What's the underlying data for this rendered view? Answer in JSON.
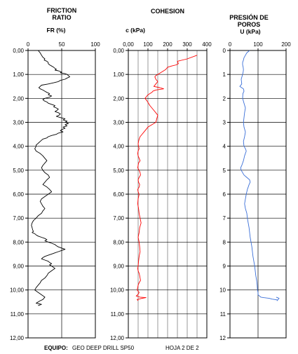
{
  "chart_data": [
    {
      "type": "line",
      "title": [
        "FRICTION",
        "RATIO"
      ],
      "xlabel": "FR (%)",
      "x_ticks": [
        0,
        50,
        100
      ],
      "xlim": [
        0,
        100
      ],
      "ylim": [
        0,
        12
      ],
      "y_ticks": [
        "0,00",
        "1,00",
        "2,00",
        "3,00",
        "4,00",
        "5,00",
        "6,00",
        "7,00",
        "8,00",
        "9,00",
        "10,00",
        "11,00",
        "12,00"
      ],
      "color": "#000000",
      "series": [
        {
          "x": [
            15,
            18,
            20,
            22,
            25,
            24,
            28,
            30,
            30,
            32,
            35,
            38,
            40,
            42,
            40,
            45,
            50,
            48,
            55,
            58,
            60,
            62,
            58,
            55,
            48,
            45,
            38,
            30,
            20,
            18,
            16,
            18,
            22,
            25,
            28,
            32,
            30,
            35,
            32,
            25,
            22,
            24,
            28,
            30,
            35,
            40,
            38,
            42,
            45,
            43,
            40,
            45,
            48,
            46,
            42,
            48,
            55,
            52,
            58,
            55,
            60,
            55,
            58,
            52,
            55,
            50,
            48,
            52,
            45,
            42,
            35,
            30,
            28,
            22,
            20,
            18,
            16,
            14,
            12,
            12,
            10,
            12,
            18,
            22,
            25,
            28,
            25,
            22,
            20,
            22,
            25,
            30,
            32,
            28,
            25,
            22,
            28,
            32,
            35,
            30,
            25,
            20,
            18,
            20,
            22,
            25,
            22,
            20,
            15,
            12,
            8,
            6,
            5,
            6,
            7,
            8,
            6,
            10,
            12,
            15,
            20,
            25,
            28,
            25,
            30,
            35,
            40,
            42,
            45,
            50,
            55,
            50,
            45,
            40,
            35,
            30,
            25,
            22,
            20,
            25,
            30,
            32,
            35,
            32,
            35,
            40,
            35,
            30,
            28,
            25,
            20,
            18,
            15,
            12,
            10,
            15,
            20,
            25,
            22,
            18,
            15,
            12,
            20,
            15
          ],
          "y": [
            0.0,
            0.1,
            0.2,
            0.28,
            0.35,
            0.4,
            0.45,
            0.5,
            0.55,
            0.6,
            0.65,
            0.7,
            0.75,
            0.78,
            0.82,
            0.85,
            0.9,
            0.93,
            0.97,
            1.0,
            1.05,
            1.1,
            1.15,
            1.2,
            1.25,
            1.3,
            1.35,
            1.4,
            1.45,
            1.5,
            1.55,
            1.6,
            1.65,
            1.7,
            1.75,
            1.8,
            1.85,
            1.9,
            1.95,
            2.0,
            2.05,
            2.1,
            2.15,
            2.2,
            2.25,
            2.3,
            2.35,
            2.4,
            2.45,
            2.5,
            2.55,
            2.6,
            2.65,
            2.7,
            2.75,
            2.8,
            2.85,
            2.9,
            2.95,
            3.0,
            3.05,
            3.1,
            3.15,
            3.2,
            3.25,
            3.3,
            3.35,
            3.4,
            3.45,
            3.5,
            3.55,
            3.6,
            3.65,
            3.7,
            3.75,
            3.8,
            3.85,
            3.9,
            3.95,
            4.0,
            4.1,
            4.2,
            4.3,
            4.4,
            4.5,
            4.6,
            4.7,
            4.8,
            4.9,
            5.0,
            5.1,
            5.2,
            5.3,
            5.4,
            5.5,
            5.6,
            5.7,
            5.8,
            5.9,
            6.0,
            6.1,
            6.2,
            6.3,
            6.4,
            6.5,
            6.6,
            6.7,
            6.8,
            6.9,
            7.0,
            7.1,
            7.2,
            7.3,
            7.4,
            7.5,
            7.55,
            7.6,
            7.65,
            7.7,
            7.75,
            7.8,
            7.85,
            7.9,
            7.95,
            8.0,
            8.05,
            8.1,
            8.15,
            8.2,
            8.25,
            8.3,
            8.35,
            8.4,
            8.45,
            8.5,
            8.55,
            8.6,
            8.65,
            8.7,
            8.75,
            8.8,
            8.85,
            8.9,
            8.95,
            9.0,
            9.1,
            9.2,
            9.3,
            9.4,
            9.5,
            9.6,
            9.7,
            9.8,
            9.9,
            10.0,
            10.1,
            10.2,
            10.3,
            10.4,
            10.45,
            10.5,
            10.55,
            10.6,
            10.65
          ]
        }
      ]
    },
    {
      "type": "line",
      "title": [
        "COHESION"
      ],
      "xlabel": "c (kPa)",
      "x_ticks": [
        0,
        100,
        200,
        300,
        400
      ],
      "x_tick_labels": [
        "0,00",
        "100",
        "200",
        "300",
        "400"
      ],
      "xlim": [
        0,
        400
      ],
      "ylim": [
        0,
        12
      ],
      "y_ticks": [
        "0,00",
        "1,00",
        "2,00",
        "3,00",
        "4,00",
        "5,00",
        "6,00",
        "7,00",
        "8,00",
        "9,00",
        "10,00",
        "11,00",
        "12,00"
      ],
      "minor_gridlines_x": [
        50,
        100,
        150,
        200,
        250,
        300,
        350
      ],
      "color": "#ff0000",
      "series": [
        {
          "x": [
            350,
            300,
            250,
            255,
            245,
            220,
            200,
            195,
            190,
            180,
            170,
            160,
            150,
            140,
            135,
            140,
            150,
            140,
            130,
            160,
            180,
            140,
            125,
            120,
            110,
            100,
            95,
            90,
            85,
            95,
            110,
            130,
            150,
            140,
            120,
            100,
            90,
            80,
            70,
            60,
            55,
            52,
            50,
            52,
            55,
            50,
            48,
            50,
            55,
            60,
            52,
            50,
            48,
            55,
            60,
            62,
            55,
            50,
            52,
            58,
            55,
            48,
            50,
            55,
            50,
            48,
            52,
            55,
            60,
            65,
            58,
            55,
            50,
            55,
            58,
            60,
            55,
            52,
            50,
            48,
            50,
            55,
            58,
            60,
            62,
            55,
            50,
            48,
            45,
            50,
            55,
            52,
            48,
            40,
            60,
            90,
            70,
            45,
            50
          ],
          "y": [
            0.2,
            0.35,
            0.45,
            0.55,
            0.6,
            0.65,
            0.7,
            0.75,
            0.8,
            0.85,
            0.9,
            0.95,
            1.0,
            1.05,
            1.1,
            1.2,
            1.3,
            1.4,
            1.5,
            1.55,
            1.6,
            1.65,
            1.7,
            1.75,
            1.8,
            1.85,
            1.9,
            1.95,
            2.0,
            2.1,
            2.3,
            2.5,
            2.7,
            3.0,
            3.1,
            3.2,
            3.3,
            3.4,
            3.5,
            3.6,
            3.7,
            3.8,
            3.9,
            4.0,
            4.1,
            4.2,
            4.3,
            4.4,
            4.5,
            4.6,
            4.7,
            4.8,
            4.9,
            5.0,
            5.1,
            5.2,
            5.3,
            5.4,
            5.5,
            5.6,
            5.7,
            5.8,
            5.9,
            6.0,
            6.2,
            6.4,
            6.6,
            6.8,
            7.0,
            7.2,
            7.4,
            7.6,
            7.8,
            8.0,
            8.2,
            8.4,
            8.6,
            8.8,
            9.0,
            9.1,
            9.2,
            9.3,
            9.4,
            9.5,
            9.6,
            9.7,
            9.8,
            9.9,
            10.0,
            10.05,
            10.1,
            10.15,
            10.2,
            10.25,
            10.3,
            10.32,
            10.35,
            10.4,
            10.45
          ]
        }
      ]
    },
    {
      "type": "line",
      "title": [
        "PRESIÓN DE",
        "POROS"
      ],
      "xlabel": "U (kPa)",
      "x_ticks": [
        0,
        100,
        200
      ],
      "xlim": [
        0,
        200
      ],
      "ylim": [
        0,
        12
      ],
      "y_ticks": [
        "0",
        "1",
        "2",
        "3",
        "4",
        "5",
        "6",
        "7",
        "8",
        "9",
        "10",
        "11",
        "12"
      ],
      "color": "#3a6fd8",
      "series": [
        {
          "x": [
            70,
            60,
            55,
            50,
            48,
            45,
            45,
            47,
            48,
            47,
            45,
            40,
            42,
            35,
            48,
            50,
            46,
            45,
            50,
            55,
            52,
            50,
            48,
            50,
            55,
            52,
            48,
            50,
            55,
            58,
            55,
            52,
            50,
            48,
            45,
            42,
            38,
            40,
            45,
            50,
            60,
            70,
            72,
            68,
            65,
            62,
            60,
            58,
            55,
            52,
            55,
            60,
            62,
            65,
            68,
            70,
            72,
            75,
            78,
            80,
            82,
            85,
            88,
            90,
            92,
            95,
            97,
            98,
            100,
            100,
            105,
            110,
            120,
            140,
            150,
            160,
            170,
            168,
            175,
            165
          ],
          "y": [
            0.0,
            0.1,
            0.2,
            0.3,
            0.4,
            0.5,
            0.6,
            0.7,
            0.8,
            0.9,
            1.0,
            1.2,
            1.4,
            1.5,
            1.6,
            1.7,
            1.8,
            2.0,
            2.2,
            2.4,
            2.6,
            2.8,
            3.0,
            3.2,
            3.4,
            3.6,
            3.8,
            4.0,
            4.1,
            4.2,
            4.3,
            4.4,
            4.5,
            4.6,
            4.7,
            4.8,
            4.9,
            5.0,
            5.1,
            5.2,
            5.3,
            5.4,
            5.5,
            5.6,
            5.7,
            5.8,
            5.9,
            6.0,
            6.2,
            6.4,
            6.6,
            6.8,
            7.0,
            7.2,
            7.4,
            7.6,
            7.8,
            8.0,
            8.2,
            8.4,
            8.6,
            8.8,
            9.0,
            9.2,
            9.4,
            9.6,
            9.8,
            10.0,
            10.1,
            10.2,
            10.25,
            10.3,
            10.32,
            10.35,
            10.38,
            10.4,
            10.42,
            10.45,
            10.35,
            10.3
          ]
        }
      ]
    }
  ],
  "footer": {
    "equipo_label": "EQUIPO:",
    "equipo_value": "GEO DEEP DRILL SP50",
    "hoja": "HOJA 2 DE 2"
  }
}
